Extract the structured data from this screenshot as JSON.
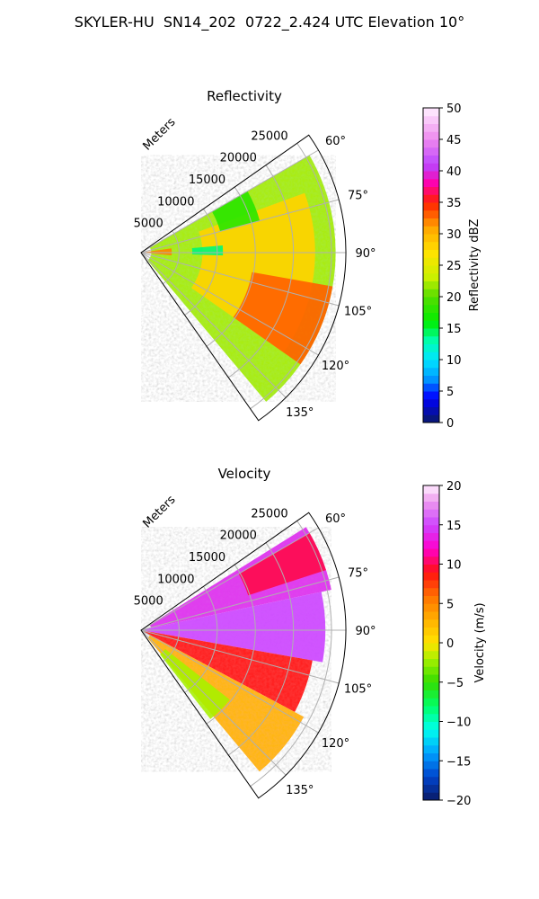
{
  "figure_title": "SKYLER-HU  SN14_202  0722_2.424 UTC Elevation 10°",
  "chart_data": [
    {
      "type": "polar-sector",
      "title": "Reflectivity",
      "radial_label": "Meters",
      "radial_ticks": [
        "5000",
        "10000",
        "15000",
        "20000",
        "25000"
      ],
      "radial_values": [
        5000,
        10000,
        15000,
        20000,
        25000
      ],
      "rmax": 25000,
      "azimuth_range_deg": [
        55,
        145
      ],
      "azimuth_ticks": [
        {
          "deg": 60,
          "label": "60°"
        },
        {
          "deg": 75,
          "label": "75°"
        },
        {
          "deg": 90,
          "label": "90°"
        },
        {
          "deg": 105,
          "label": "105°"
        },
        {
          "deg": 120,
          "label": "120°"
        },
        {
          "deg": 135,
          "label": "135°"
        }
      ],
      "colorbar": {
        "label": "Reflectivity dBZ",
        "vmin": 0,
        "vmax": 50,
        "ticks": [
          "0",
          "5",
          "10",
          "15",
          "20",
          "25",
          "30",
          "35",
          "40",
          "45",
          "50"
        ],
        "tick_values": [
          0,
          5,
          10,
          15,
          20,
          25,
          30,
          35,
          40,
          45,
          50
        ],
        "stops": [
          {
            "v": 0,
            "c": "#0a1a66"
          },
          {
            "v": 4,
            "c": "#0000ff"
          },
          {
            "v": 7,
            "c": "#0099ff"
          },
          {
            "v": 10,
            "c": "#00e5ff"
          },
          {
            "v": 13,
            "c": "#00ffb0"
          },
          {
            "v": 16,
            "c": "#00ee00"
          },
          {
            "v": 20,
            "c": "#55dd00"
          },
          {
            "v": 23,
            "c": "#c8f000"
          },
          {
            "v": 27,
            "c": "#ffe400"
          },
          {
            "v": 31,
            "c": "#ffa500"
          },
          {
            "v": 35,
            "c": "#ff2000"
          },
          {
            "v": 38,
            "c": "#ff00aa"
          },
          {
            "v": 41,
            "c": "#bb44ff"
          },
          {
            "v": 45,
            "c": "#ee88ee"
          },
          {
            "v": 50,
            "c": "#fff0ff"
          }
        ]
      },
      "field_regions": [
        {
          "az": [
            60,
            140
          ],
          "r": [
            0.05,
            0.95
          ],
          "value": 22
        },
        {
          "az": [
            70,
            125
          ],
          "r": [
            0.3,
            0.85
          ],
          "value": 28
        },
        {
          "az": [
            100,
            125
          ],
          "r": [
            0.55,
            0.95
          ],
          "value": 33
        },
        {
          "az": [
            60,
            75
          ],
          "r": [
            0.4,
            0.6
          ],
          "value": 18
        },
        {
          "az": [
            85,
            92
          ],
          "r": [
            0.25,
            0.4
          ],
          "value": 14
        },
        {
          "az": [
            82,
            95
          ],
          "r": [
            0.0,
            0.15
          ],
          "value": 32
        }
      ]
    },
    {
      "type": "polar-sector",
      "title": "Velocity",
      "radial_label": "Meters",
      "radial_ticks": [
        "5000",
        "10000",
        "15000",
        "20000",
        "25000"
      ],
      "radial_values": [
        5000,
        10000,
        15000,
        20000,
        25000
      ],
      "rmax": 25000,
      "azimuth_range_deg": [
        55,
        145
      ],
      "azimuth_ticks": [
        {
          "deg": 60,
          "label": "60°"
        },
        {
          "deg": 75,
          "label": "75°"
        },
        {
          "deg": 90,
          "label": "90°"
        },
        {
          "deg": 105,
          "label": "105°"
        },
        {
          "deg": 120,
          "label": "120°"
        },
        {
          "deg": 135,
          "label": "135°"
        }
      ],
      "colorbar": {
        "label": "Velocity (m/s)",
        "vmin": -20,
        "vmax": 20,
        "ticks": [
          "−20",
          "−15",
          "−10",
          "−5",
          "0",
          "5",
          "10",
          "15",
          "20"
        ],
        "tick_values": [
          -20,
          -15,
          -10,
          -5,
          0,
          5,
          10,
          15,
          20
        ],
        "stops": [
          {
            "v": -20,
            "c": "#0a1a66"
          },
          {
            "v": -17,
            "c": "#0044cc"
          },
          {
            "v": -14,
            "c": "#00a0ff"
          },
          {
            "v": -11,
            "c": "#00ffee"
          },
          {
            "v": -8,
            "c": "#00ff66"
          },
          {
            "v": -5,
            "c": "#33dd00"
          },
          {
            "v": -2,
            "c": "#aaf000"
          },
          {
            "v": 0,
            "c": "#ffe400"
          },
          {
            "v": 3,
            "c": "#ffb000"
          },
          {
            "v": 6,
            "c": "#ff7000"
          },
          {
            "v": 9,
            "c": "#ff1010"
          },
          {
            "v": 12,
            "c": "#ff00cc"
          },
          {
            "v": 15,
            "c": "#cc44ff"
          },
          {
            "v": 18,
            "c": "#ee99ee"
          },
          {
            "v": 20,
            "c": "#fff0ff"
          }
        ]
      },
      "field_regions": [
        {
          "az": [
            58,
            78
          ],
          "r": [
            0.05,
            0.95
          ],
          "value": 14
        },
        {
          "az": [
            60,
            72
          ],
          "r": [
            0.55,
            0.95
          ],
          "value": 10
        },
        {
          "az": [
            78,
            100
          ],
          "r": [
            0.0,
            0.9
          ],
          "value": 15
        },
        {
          "az": [
            100,
            118
          ],
          "r": [
            0.0,
            0.85
          ],
          "value": 9
        },
        {
          "az": [
            118,
            140
          ],
          "r": [
            0.05,
            0.9
          ],
          "value": 3
        },
        {
          "az": [
            128,
            142
          ],
          "r": [
            0.15,
            0.55
          ],
          "value": -2
        }
      ]
    }
  ]
}
